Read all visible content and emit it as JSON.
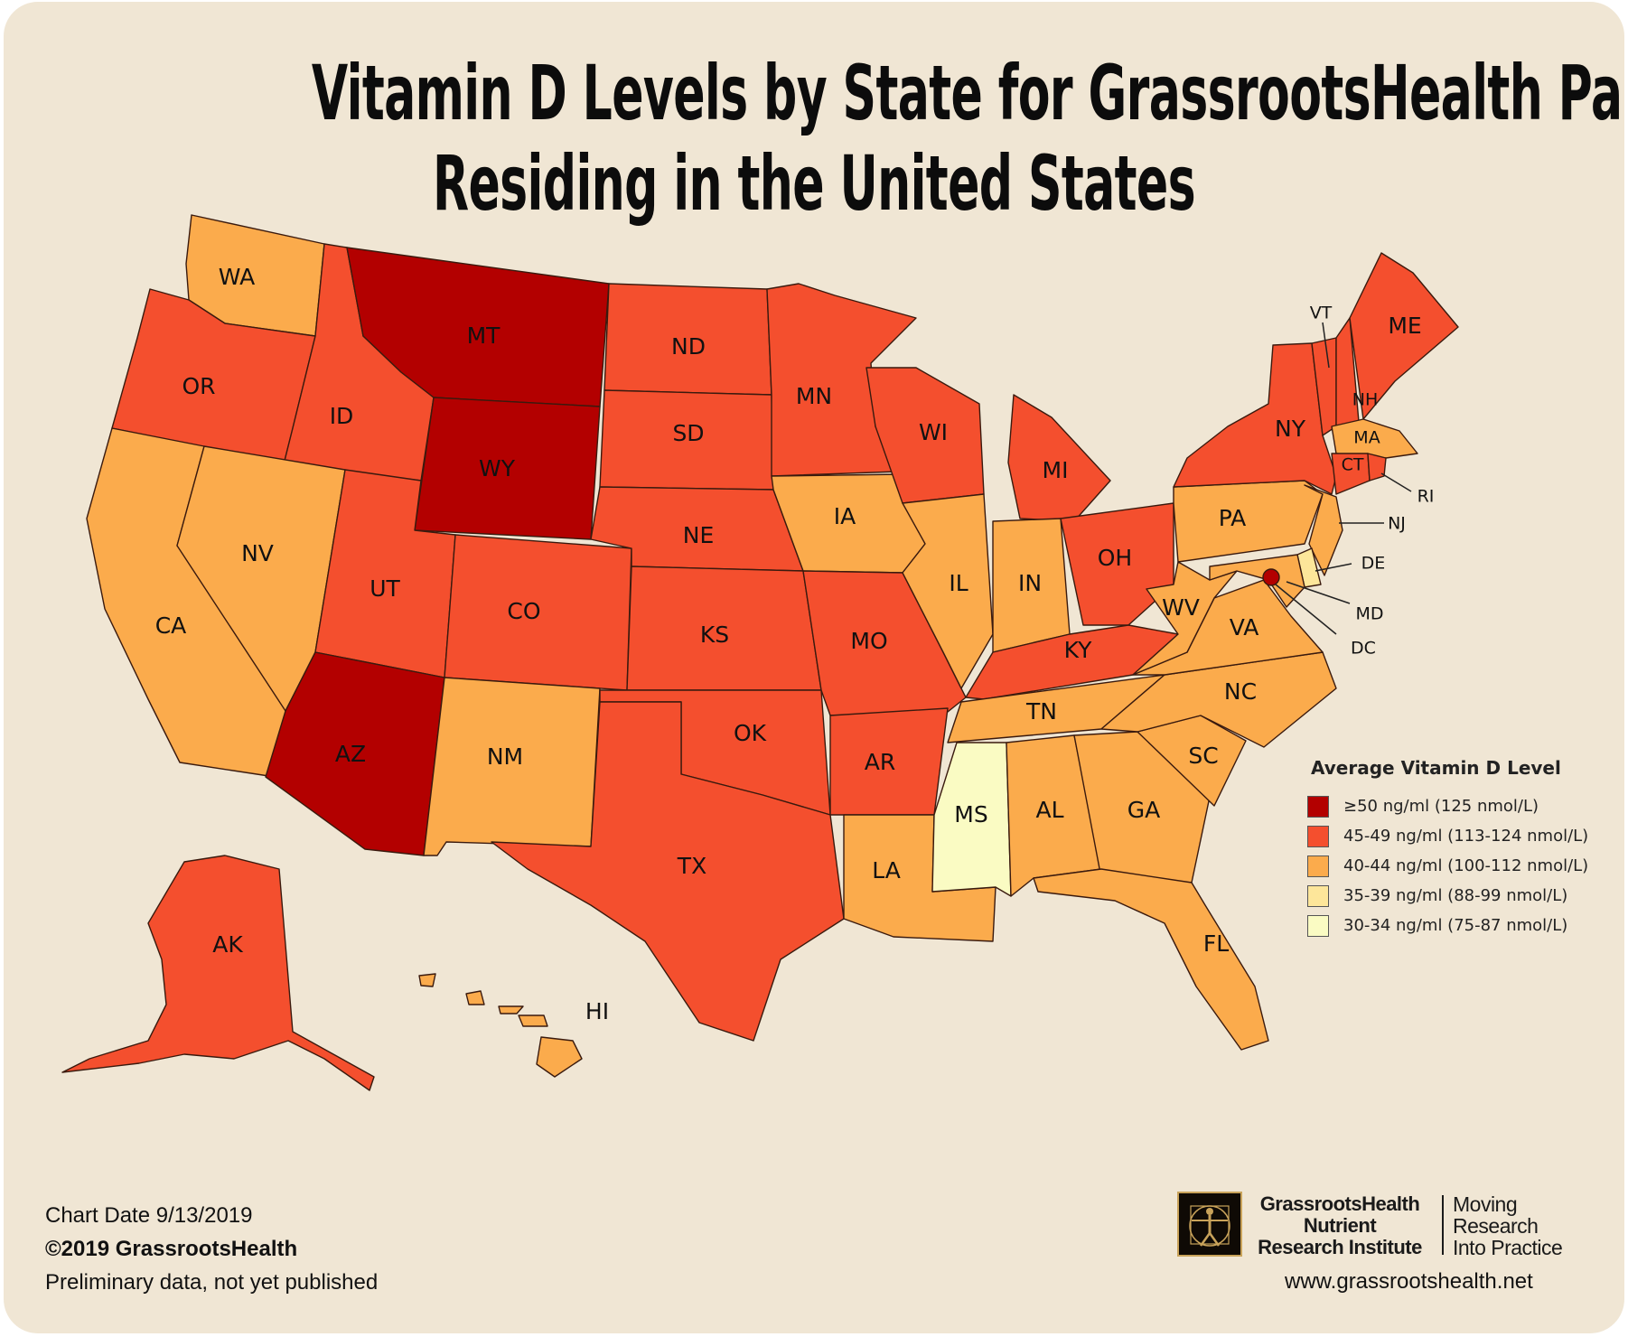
{
  "title": {
    "line1": "Vitamin D Levels by State for GrassrootsHealth Participants",
    "line2": "Residing in the United States"
  },
  "colors": {
    "background": "#f0e6d4",
    "ge50": "#b30000",
    "r45_49": "#f44f2e",
    "r40_44": "#fbab4c",
    "r35_39": "#fde69a",
    "r30_34": "#fafbc3"
  },
  "legend": {
    "title": "Average Vitamin D Level",
    "items": [
      {
        "label": "≥50 ng/ml (125 nmol/L)",
        "color": "#b30000"
      },
      {
        "label": "45-49 ng/ml (113-124 nmol/L)",
        "color": "#f44f2e"
      },
      {
        "label": "40-44 ng/ml (100-112 nmol/L)",
        "color": "#fbab4c"
      },
      {
        "label": "35-39 ng/ml (88-99 nmol/L)",
        "color": "#fde69a"
      },
      {
        "label": "30-34 ng/ml (75-87 nmol/L)",
        "color": "#fafbc3"
      }
    ]
  },
  "states": {
    "WA": {
      "label": "WA",
      "range": "40-44 ng/ml"
    },
    "OR": {
      "label": "OR",
      "range": "45-49 ng/ml"
    },
    "CA": {
      "label": "CA",
      "range": "40-44 ng/ml"
    },
    "ID": {
      "label": "ID",
      "range": "45-49 ng/ml"
    },
    "NV": {
      "label": "NV",
      "range": "40-44 ng/ml"
    },
    "MT": {
      "label": "MT",
      "range": "≥50 ng/ml"
    },
    "WY": {
      "label": "WY",
      "range": "≥50 ng/ml"
    },
    "UT": {
      "label": "UT",
      "range": "45-49 ng/ml"
    },
    "AZ": {
      "label": "AZ",
      "range": "≥50 ng/ml"
    },
    "CO": {
      "label": "CO",
      "range": "45-49 ng/ml"
    },
    "NM": {
      "label": "NM",
      "range": "40-44 ng/ml"
    },
    "ND": {
      "label": "ND",
      "range": "45-49 ng/ml"
    },
    "SD": {
      "label": "SD",
      "range": "45-49 ng/ml"
    },
    "NE": {
      "label": "NE",
      "range": "45-49 ng/ml"
    },
    "KS": {
      "label": "KS",
      "range": "45-49 ng/ml"
    },
    "OK": {
      "label": "OK",
      "range": "45-49 ng/ml"
    },
    "TX": {
      "label": "TX",
      "range": "45-49 ng/ml"
    },
    "MN": {
      "label": "MN",
      "range": "45-49 ng/ml"
    },
    "IA": {
      "label": "IA",
      "range": "40-44 ng/ml"
    },
    "MO": {
      "label": "MO",
      "range": "45-49 ng/ml"
    },
    "AR": {
      "label": "AR",
      "range": "45-49 ng/ml"
    },
    "LA": {
      "label": "LA",
      "range": "40-44 ng/ml"
    },
    "WI": {
      "label": "WI",
      "range": "45-49 ng/ml"
    },
    "IL": {
      "label": "IL",
      "range": "40-44 ng/ml"
    },
    "MI": {
      "label": "MI",
      "range": "45-49 ng/ml"
    },
    "IN": {
      "label": "IN",
      "range": "40-44 ng/ml"
    },
    "OH": {
      "label": "OH",
      "range": "45-49 ng/ml"
    },
    "KY": {
      "label": "KY",
      "range": "45-49 ng/ml"
    },
    "TN": {
      "label": "TN",
      "range": "40-44 ng/ml"
    },
    "MS": {
      "label": "MS",
      "range": "30-34 ng/ml"
    },
    "AL": {
      "label": "AL",
      "range": "40-44 ng/ml"
    },
    "GA": {
      "label": "GA",
      "range": "40-44 ng/ml"
    },
    "FL": {
      "label": "FL",
      "range": "40-44 ng/ml"
    },
    "SC": {
      "label": "SC",
      "range": "40-44 ng/ml"
    },
    "NC": {
      "label": "NC",
      "range": "40-44 ng/ml"
    },
    "VA": {
      "label": "VA",
      "range": "40-44 ng/ml"
    },
    "WV": {
      "label": "WV",
      "range": "40-44 ng/ml"
    },
    "PA": {
      "label": "PA",
      "range": "40-44 ng/ml"
    },
    "NY": {
      "label": "NY",
      "range": "45-49 ng/ml"
    },
    "VT": {
      "label": "VT",
      "range": "45-49 ng/ml"
    },
    "NH": {
      "label": "NH",
      "range": "45-49 ng/ml"
    },
    "ME": {
      "label": "ME",
      "range": "45-49 ng/ml"
    },
    "MA": {
      "label": "MA",
      "range": "40-44 ng/ml"
    },
    "CT": {
      "label": "CT",
      "range": "45-49 ng/ml"
    },
    "RI": {
      "label": "RI",
      "range": "45-49 ng/ml"
    },
    "NJ": {
      "label": "NJ",
      "range": "40-44 ng/ml"
    },
    "DE": {
      "label": "DE",
      "range": "35-39 ng/ml"
    },
    "MD": {
      "label": "MD",
      "range": "40-44 ng/ml"
    },
    "DC": {
      "label": "DC",
      "range": "≥50 ng/ml"
    },
    "AK": {
      "label": "AK",
      "range": "45-49 ng/ml"
    },
    "HI": {
      "label": "HI",
      "range": "40-44 ng/ml"
    }
  },
  "footer": {
    "chart_date": "Chart Date 9/13/2019",
    "copyright": "©2019 GrassrootsHealth",
    "note": "Preliminary data, not yet published"
  },
  "brand": {
    "name_line1": "GrassrootsHealth",
    "name_line2": "Nutrient",
    "name_line3": "Research Institute",
    "tagline_line1": "Moving",
    "tagline_line2": "Research",
    "tagline_line3": "Into Practice",
    "website": "www.grassrootshealth.net"
  }
}
